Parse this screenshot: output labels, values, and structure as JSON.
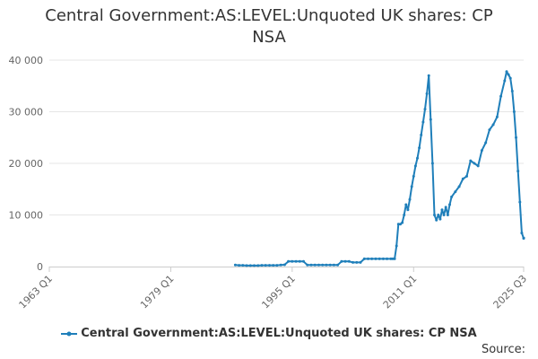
{
  "title_line1": "Central Government:AS:LEVEL:Unquoted UK shares: CP",
  "title_line2": "NSA",
  "source_label": "Source:",
  "colors": {
    "series": "#1f7fba",
    "grid": "#e6e6e6",
    "axis": "#cccccc",
    "text": "#333333",
    "tick_text": "#666666"
  },
  "chart_data": {
    "type": "line",
    "title": "Central Government:AS:LEVEL:Unquoted UK shares: CP NSA",
    "xlabel": "",
    "ylabel": "",
    "x_ticks": [
      "1963 Q1",
      "1979 Q1",
      "1995 Q1",
      "2011 Q1",
      "2025 Q3"
    ],
    "x_range": [
      1963.0,
      2025.5
    ],
    "y_ticks": [
      0,
      10000,
      20000,
      30000,
      40000
    ],
    "y_tick_labels": [
      "0",
      "10 000",
      "20 000",
      "30 000",
      "40 000"
    ],
    "ylim": [
      0,
      40000
    ],
    "grid": true,
    "legend_position": "bottom",
    "series": [
      {
        "name": "Central Government:AS:LEVEL:Unquoted UK shares: CP NSA",
        "x": [
          1987.5,
          1988.0,
          1988.5,
          1989.0,
          1989.5,
          1990.0,
          1990.5,
          1991.0,
          1991.5,
          1992.0,
          1992.5,
          1993.0,
          1993.5,
          1994.0,
          1994.5,
          1995.0,
          1995.5,
          1996.0,
          1996.5,
          1997.0,
          1997.5,
          1998.0,
          1998.5,
          1999.0,
          1999.5,
          2000.0,
          2000.5,
          2001.0,
          2001.5,
          2002.0,
          2002.5,
          2003.0,
          2003.5,
          2004.0,
          2004.5,
          2005.0,
          2005.5,
          2006.0,
          2006.5,
          2007.0,
          2007.5,
          2008.0,
          2008.25,
          2008.5,
          2008.75,
          2009.0,
          2009.25,
          2009.5,
          2009.75,
          2010.0,
          2010.25,
          2010.5,
          2010.75,
          2011.0,
          2011.25,
          2011.5,
          2011.75,
          2012.0,
          2012.25,
          2012.5,
          2012.75,
          2013.0,
          2013.25,
          2013.5,
          2013.75,
          2014.0,
          2014.25,
          2014.5,
          2014.75,
          2015.0,
          2015.25,
          2015.5,
          2015.75,
          2016.0,
          2016.5,
          2017.0,
          2017.5,
          2018.0,
          2018.5,
          2019.0,
          2019.5,
          2020.0,
          2020.5,
          2021.0,
          2021.5,
          2022.0,
          2022.5,
          2023.0,
          2023.25,
          2023.5,
          2023.75,
          2024.0,
          2024.25,
          2024.5,
          2024.75,
          2025.0,
          2025.25,
          2025.5
        ],
        "y": [
          300,
          250,
          250,
          200,
          200,
          200,
          200,
          250,
          250,
          250,
          250,
          250,
          300,
          350,
          1000,
          1000,
          1000,
          1000,
          1000,
          300,
          300,
          300,
          300,
          300,
          300,
          300,
          300,
          300,
          1000,
          1000,
          1000,
          800,
          800,
          800,
          1500,
          1500,
          1500,
          1500,
          1500,
          1500,
          1500,
          1500,
          1500,
          1500,
          4000,
          8200,
          8200,
          8500,
          10000,
          12000,
          11000,
          13000,
          15500,
          17500,
          19500,
          21000,
          23000,
          25500,
          28000,
          30500,
          33500,
          37000,
          28500,
          20000,
          10000,
          9000,
          10000,
          9200,
          11000,
          10000,
          11500,
          10000,
          12000,
          13500,
          14500,
          15500,
          17000,
          17500,
          20500,
          20000,
          19500,
          22500,
          24000,
          26500,
          27500,
          29000,
          33000,
          36000,
          37800,
          37200,
          36500,
          34000,
          30000,
          25000,
          18500,
          12500,
          6500,
          5500
        ],
        "tail": [
          5500,
          5500,
          5500,
          5500
        ]
      }
    ]
  }
}
